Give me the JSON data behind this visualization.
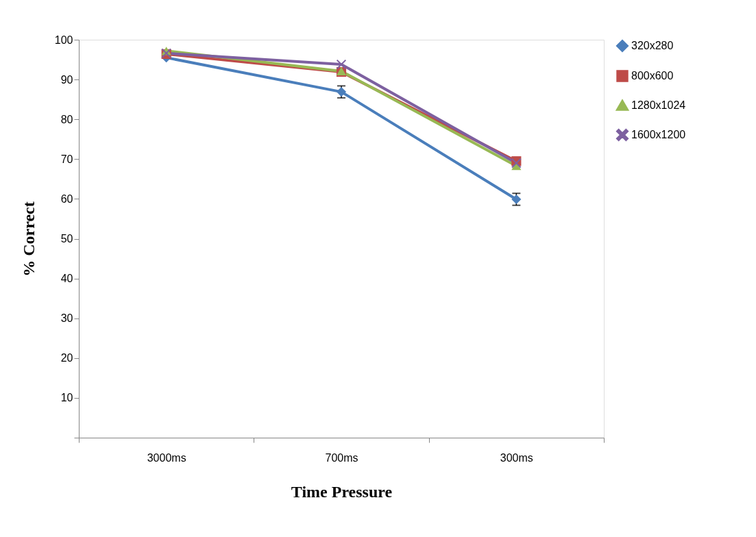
{
  "chart_data": {
    "type": "line",
    "xlabel": "Time Pressure",
    "ylabel": "% Correct",
    "categories": [
      "3000ms",
      "700ms",
      "300ms"
    ],
    "series": [
      {
        "name": "320x280",
        "color": "#4a7ebb",
        "marker": "diamond",
        "values": [
          95.5,
          86.9,
          59.9
        ],
        "errors": [
          null,
          1.5,
          1.5
        ]
      },
      {
        "name": "800x600",
        "color": "#be4b48",
        "marker": "square",
        "values": [
          96.4,
          91.9,
          69.5
        ]
      },
      {
        "name": "1280x1024",
        "color": "#98b954",
        "marker": "triangle",
        "values": [
          97.2,
          92.1,
          68.3
        ]
      },
      {
        "name": "1600x1200",
        "color": "#7d60a0",
        "marker": "cross",
        "values": [
          96.6,
          93.8,
          69.0
        ]
      }
    ],
    "ylim": [
      0,
      100
    ],
    "yticks": [
      {
        "value": 0,
        "label": null
      },
      10,
      20,
      30,
      40,
      50,
      60,
      70,
      80,
      90,
      100
    ],
    "grid": false,
    "legend": "right"
  }
}
